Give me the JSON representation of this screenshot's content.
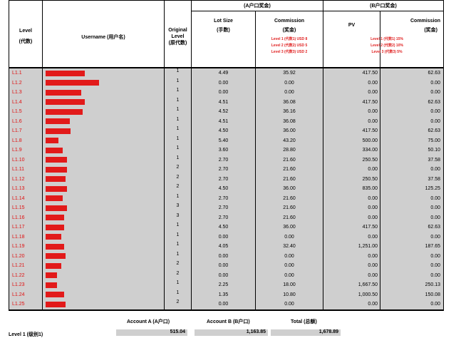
{
  "header": {
    "level_title": "Level",
    "level_sub": "(代数)",
    "username_title": "Username (用户名)",
    "orig_title": "Original",
    "orig_sub1": "Level",
    "orig_sub2": "(原代数)",
    "group_a": "(A户口奖金)",
    "group_b": "(B户口奖金)",
    "lot_title": "Lot Size",
    "lot_sub": "(手数)",
    "comm_a_title": "Commission",
    "comm_a_sub": "(奖金)",
    "comm_a_rates": [
      "Level 1 (代数1) USD 8",
      "Level 2 (代数2) USD 5",
      "Level 3 (代数3) USD 2"
    ],
    "pv_title": "PV",
    "comm_b_title": "Commission",
    "comm_b_sub": "(奖金)",
    "comm_b_rates": [
      "Level 1 (代数1) 15%",
      "Level 2 (代数2) 10%",
      "Level 3 (代数3) 5%"
    ]
  },
  "rows": [
    {
      "level": "L1.1",
      "orig": "1",
      "lot": "4.49",
      "comm_a": "35.92",
      "pv": "417.50",
      "comm_b": "62.63",
      "redact_w": 55
    },
    {
      "level": "L1.2",
      "orig": "1",
      "lot": "0.00",
      "comm_a": "0.00",
      "pv": "0.00",
      "comm_b": "0.00",
      "redact_w": 75
    },
    {
      "level": "L1.3",
      "orig": "1",
      "lot": "0.00",
      "comm_a": "0.00",
      "pv": "0.00",
      "comm_b": "0.00",
      "redact_w": 50
    },
    {
      "level": "L1.4",
      "orig": "1",
      "lot": "4.51",
      "comm_a": "36.08",
      "pv": "417.50",
      "comm_b": "62.63",
      "redact_w": 55
    },
    {
      "level": "L1.5",
      "orig": "1",
      "lot": "4.52",
      "comm_a": "36.16",
      "pv": "0.00",
      "comm_b": "0.00",
      "redact_w": 52
    },
    {
      "level": "L1.6",
      "orig": "1",
      "lot": "4.51",
      "comm_a": "36.08",
      "pv": "0.00",
      "comm_b": "0.00",
      "redact_w": 34
    },
    {
      "level": "L1.7",
      "orig": "1",
      "lot": "4.50",
      "comm_a": "36.00",
      "pv": "417.50",
      "comm_b": "62.63",
      "redact_w": 35
    },
    {
      "level": "L1.8",
      "orig": "1",
      "lot": "5.40",
      "comm_a": "43.20",
      "pv": "500.00",
      "comm_b": "75.00",
      "redact_w": 18
    },
    {
      "level": "L1.9",
      "orig": "1",
      "lot": "3.60",
      "comm_a": "28.80",
      "pv": "334.00",
      "comm_b": "50.10",
      "redact_w": 24
    },
    {
      "level": "L1.10",
      "orig": "1",
      "lot": "2.70",
      "comm_a": "21.60",
      "pv": "250.50",
      "comm_b": "37.58",
      "redact_w": 30
    },
    {
      "level": "L1.11",
      "orig": "2",
      "lot": "2.70",
      "comm_a": "21.60",
      "pv": "0.00",
      "comm_b": "0.00",
      "redact_w": 30
    },
    {
      "level": "L1.12",
      "orig": "2",
      "lot": "2.70",
      "comm_a": "21.60",
      "pv": "250.50",
      "comm_b": "37.58",
      "redact_w": 28
    },
    {
      "level": "L1.13",
      "orig": "2",
      "lot": "4.50",
      "comm_a": "36.00",
      "pv": "835.00",
      "comm_b": "125.25",
      "redact_w": 30
    },
    {
      "level": "L1.14",
      "orig": "1",
      "lot": "2.70",
      "comm_a": "21.60",
      "pv": "0.00",
      "comm_b": "0.00",
      "redact_w": 24
    },
    {
      "level": "L1.15",
      "orig": "3",
      "lot": "2.70",
      "comm_a": "21.60",
      "pv": "0.00",
      "comm_b": "0.00",
      "redact_w": 30
    },
    {
      "level": "L1.16",
      "orig": "3",
      "lot": "2.70",
      "comm_a": "21.60",
      "pv": "0.00",
      "comm_b": "0.00",
      "redact_w": 26
    },
    {
      "level": "L1.17",
      "orig": "1",
      "lot": "4.50",
      "comm_a": "36.00",
      "pv": "417.50",
      "comm_b": "62.63",
      "redact_w": 26
    },
    {
      "level": "L1.18",
      "orig": "1",
      "lot": "0.00",
      "comm_a": "0.00",
      "pv": "0.00",
      "comm_b": "0.00",
      "redact_w": 22
    },
    {
      "level": "L1.19",
      "orig": "1",
      "lot": "4.05",
      "comm_a": "32.40",
      "pv": "1,251.00",
      "comm_b": "187.65",
      "redact_w": 26
    },
    {
      "level": "L1.20",
      "orig": "1",
      "lot": "0.00",
      "comm_a": "0.00",
      "pv": "0.00",
      "comm_b": "0.00",
      "redact_w": 28
    },
    {
      "level": "L1.21",
      "orig": "2",
      "lot": "0.00",
      "comm_a": "0.00",
      "pv": "0.00",
      "comm_b": "0.00",
      "redact_w": 22
    },
    {
      "level": "L1.22",
      "orig": "2",
      "lot": "0.00",
      "comm_a": "0.00",
      "pv": "0.00",
      "comm_b": "0.00",
      "redact_w": 16
    },
    {
      "level": "L1.23",
      "orig": "1",
      "lot": "2.25",
      "comm_a": "18.00",
      "pv": "1,667.50",
      "comm_b": "250.13",
      "redact_w": 16
    },
    {
      "level": "L1.24",
      "orig": "1",
      "lot": "1.35",
      "comm_a": "10.80",
      "pv": "1,000.50",
      "comm_b": "150.08",
      "redact_w": 26
    },
    {
      "level": "L1.25",
      "orig": "2",
      "lot": "0.00",
      "comm_a": "0.00",
      "pv": "0.00",
      "comm_b": "0.00",
      "redact_w": 28
    }
  ],
  "summary": {
    "col_a": "Account A (A户口)",
    "col_b": "Account B (B户口)",
    "col_total": "Total (总额)",
    "row_label": "Level 1 (级别1)",
    "val_a": "515.04",
    "val_b": "1,163.85",
    "val_total": "1,678.89"
  }
}
